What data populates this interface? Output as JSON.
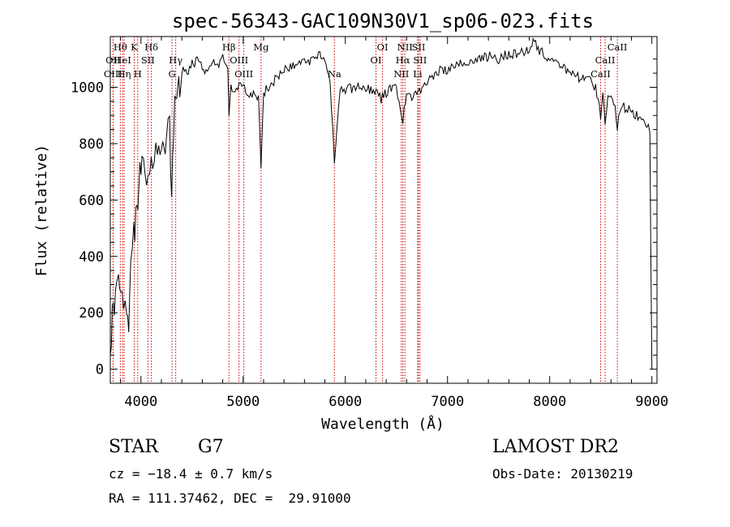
{
  "chart_data": {
    "type": "line",
    "title": "spec-56343-GAC109N30V1_sp06-023.fits",
    "xlabel": "Wavelength (Å)",
    "ylabel": "Flux (relative)",
    "xlim": [
      3700,
      9050
    ],
    "ylim": [
      -50,
      1180
    ],
    "xticks": [
      4000,
      5000,
      6000,
      7000,
      8000,
      9000
    ],
    "yticks": [
      0,
      200,
      400,
      600,
      800,
      1000
    ],
    "xtick_labels": [
      "4000",
      "5000",
      "6000",
      "7000",
      "8000",
      "9000"
    ],
    "ytick_labels": [
      "0",
      "200",
      "400",
      "600",
      "800",
      "1000"
    ],
    "grid": false,
    "line_color": "#000000",
    "marker_color": "#cc0000",
    "spectrum": {
      "x": [
        3700,
        3720,
        3740,
        3760,
        3780,
        3800,
        3830,
        3860,
        3880,
        3900,
        3930,
        3950,
        3970,
        3990,
        4010,
        4040,
        4070,
        4100,
        4130,
        4160,
        4200,
        4250,
        4280,
        4300,
        4320,
        4340,
        4360,
        4380,
        4400,
        4450,
        4500,
        4550,
        4600,
        4650,
        4700,
        4750,
        4800,
        4850,
        4861,
        4880,
        4920,
        4960,
        5000,
        5050,
        5100,
        5150,
        5175,
        5200,
        5250,
        5300,
        5400,
        5500,
        5600,
        5700,
        5750,
        5800,
        5850,
        5893,
        5950,
        6000,
        6100,
        6200,
        6300,
        6350,
        6400,
        6450,
        6500,
        6563,
        6600,
        6650,
        6700,
        6750,
        6800,
        6900,
        7000,
        7100,
        7200,
        7300,
        7400,
        7500,
        7600,
        7700,
        7800,
        7850,
        7900,
        8000,
        8100,
        8200,
        8300,
        8400,
        8450,
        8498,
        8520,
        8542,
        8570,
        8600,
        8640,
        8662,
        8700,
        8750,
        8800,
        8850,
        8900,
        8950,
        8980,
        9000
      ],
      "y": [
        50,
        180,
        240,
        300,
        350,
        280,
        200,
        230,
        150,
        380,
        470,
        540,
        600,
        680,
        720,
        700,
        640,
        760,
        720,
        780,
        750,
        820,
        880,
        620,
        860,
        980,
        1000,
        1020,
        1060,
        1050,
        1080,
        1100,
        1070,
        1060,
        1100,
        1080,
        1100,
        1050,
        900,
        1000,
        980,
        1000,
        1010,
        980,
        980,
        960,
        720,
        980,
        1000,
        1020,
        1060,
        1080,
        1090,
        1100,
        1130,
        1080,
        1020,
        740,
        1000,
        990,
        1000,
        1000,
        980,
        960,
        980,
        1000,
        1000,
        880,
        980,
        960,
        980,
        1000,
        1020,
        1060,
        1060,
        1080,
        1090,
        1100,
        1110,
        1100,
        1120,
        1120,
        1140,
        1170,
        1130,
        1100,
        1070,
        1060,
        1030,
        1020,
        1000,
        900,
        980,
        860,
        960,
        960,
        920,
        860,
        940,
        920,
        920,
        900,
        900,
        870,
        840,
        0
      ]
    },
    "lines": [
      {
        "name": "OII",
        "x": 3727,
        "row": 2
      },
      {
        "name": "OIII",
        "x": 3727,
        "row": 3
      },
      {
        "name": "Hθ",
        "x": 3798,
        "row": 1
      },
      {
        "name": "HeI",
        "x": 3820,
        "row": 2
      },
      {
        "name": "Hη",
        "x": 3835,
        "row": 3
      },
      {
        "name": "K",
        "x": 3934,
        "row": 1
      },
      {
        "name": "SII",
        "x": 4068,
        "row": 2
      },
      {
        "name": "H",
        "x": 3968,
        "row": 3
      },
      {
        "name": "Hδ",
        "x": 4102,
        "row": 1
      },
      {
        "name": "Hγ",
        "x": 4340,
        "row": 2
      },
      {
        "name": "G",
        "x": 4304,
        "row": 3
      },
      {
        "name": "Hβ",
        "x": 4861,
        "row": 1
      },
      {
        "name": "OIII",
        "x": 4959,
        "row": 2
      },
      {
        "name": "OIII",
        "x": 5007,
        "row": 3
      },
      {
        "name": "Mg",
        "x": 5175,
        "row": 1
      },
      {
        "name": "Na",
        "x": 5893,
        "row": 3
      },
      {
        "name": "OI",
        "x": 6364,
        "row": 1
      },
      {
        "name": "OI",
        "x": 6300,
        "row": 2
      },
      {
        "name": "NII",
        "x": 6583,
        "row": 1
      },
      {
        "name": "Hα",
        "x": 6563,
        "row": 2
      },
      {
        "name": "NII",
        "x": 6548,
        "row": 3
      },
      {
        "name": "SII",
        "x": 6716,
        "row": 1
      },
      {
        "name": "SII",
        "x": 6731,
        "row": 2
      },
      {
        "name": "Li",
        "x": 6708,
        "row": 3
      },
      {
        "name": "CaII",
        "x": 8662,
        "row": 1
      },
      {
        "name": "CaII",
        "x": 8542,
        "row": 2
      },
      {
        "name": "CaII",
        "x": 8498,
        "row": 3
      }
    ]
  },
  "info": {
    "object_class": "STAR",
    "subclass": "G7",
    "survey": "LAMOST DR2",
    "cz": "cz = −18.4 ± 0.7 km/s",
    "obs_date": "Obs-Date: 20130219",
    "coords": "RA = 111.37462, DEC =  29.91000"
  }
}
